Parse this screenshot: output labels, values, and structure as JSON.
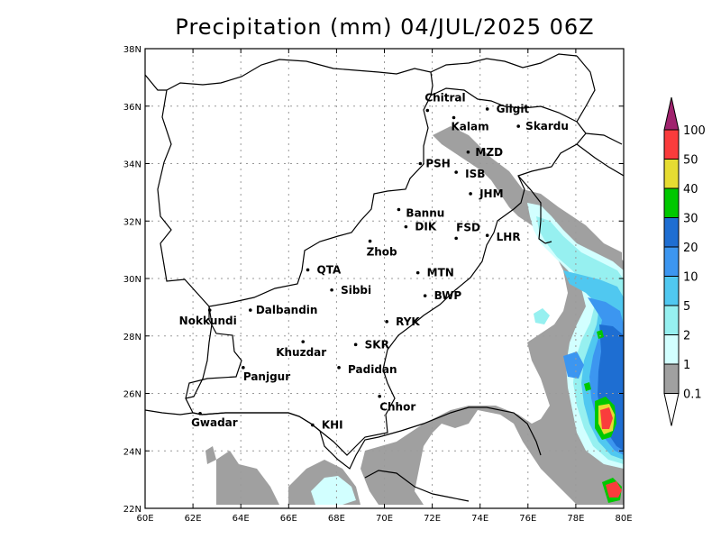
{
  "title": "Precipitation (mm) 04/JUL/2025 06Z",
  "axes": {
    "x_ticks": [
      "60E",
      "62E",
      "64E",
      "66E",
      "68E",
      "70E",
      "72E",
      "74E",
      "76E",
      "78E",
      "80E"
    ],
    "y_ticks": [
      "22N",
      "24N",
      "26N",
      "28N",
      "30N",
      "32N",
      "34N",
      "36N",
      "38N"
    ],
    "lon_range": [
      60,
      80
    ],
    "lat_range": [
      22,
      38
    ],
    "grid": true
  },
  "stations": [
    {
      "name": "Chitral",
      "lon": 71.8,
      "lat": 35.85
    },
    {
      "name": "Gilgit",
      "lon": 74.3,
      "lat": 35.9
    },
    {
      "name": "Kalam",
      "lon": 72.9,
      "lat": 35.6
    },
    {
      "name": "Skardu",
      "lon": 75.6,
      "lat": 35.3
    },
    {
      "name": "MZD",
      "lon": 73.5,
      "lat": 34.4
    },
    {
      "name": "PSH",
      "lon": 71.5,
      "lat": 34.0
    },
    {
      "name": "ISB",
      "lon": 73.0,
      "lat": 33.7
    },
    {
      "name": "JHM",
      "lon": 73.6,
      "lat": 32.95
    },
    {
      "name": "Bannu",
      "lon": 70.6,
      "lat": 32.4
    },
    {
      "name": "DIK",
      "lon": 70.9,
      "lat": 31.8
    },
    {
      "name": "FSD",
      "lon": 73.0,
      "lat": 31.4
    },
    {
      "name": "LHR",
      "lon": 74.3,
      "lat": 31.5
    },
    {
      "name": "Zhob",
      "lon": 69.4,
      "lat": 31.3
    },
    {
      "name": "QTA",
      "lon": 66.8,
      "lat": 30.3
    },
    {
      "name": "MTN",
      "lon": 71.4,
      "lat": 30.2
    },
    {
      "name": "Sibbi",
      "lon": 67.8,
      "lat": 29.6
    },
    {
      "name": "BWP",
      "lon": 71.7,
      "lat": 29.4
    },
    {
      "name": "Nokkundi",
      "lon": 62.7,
      "lat": 28.9
    },
    {
      "name": "Dalbandin",
      "lon": 64.4,
      "lat": 28.9
    },
    {
      "name": "RYK",
      "lon": 70.1,
      "lat": 28.5
    },
    {
      "name": "Khuzdar",
      "lon": 66.6,
      "lat": 27.8
    },
    {
      "name": "SKR",
      "lon": 68.8,
      "lat": 27.7
    },
    {
      "name": "Panjgur",
      "lon": 64.1,
      "lat": 26.9
    },
    {
      "name": "Padidan",
      "lon": 68.1,
      "lat": 26.9
    },
    {
      "name": "Chhor",
      "lon": 69.8,
      "lat": 25.9
    },
    {
      "name": "Gwadar",
      "lon": 62.3,
      "lat": 25.3
    },
    {
      "name": "KHI",
      "lon": 67.0,
      "lat": 24.9
    }
  ],
  "colorbar": {
    "labels": [
      "0.1",
      "1",
      "2",
      "5",
      "10",
      "20",
      "30",
      "40",
      "50",
      "100"
    ],
    "colors": [
      "#a0a0a0",
      "#d2ffff",
      "#96f0f0",
      "#50c8f0",
      "#3c96f0",
      "#1e6ed2",
      "#00c800",
      "#e6dc32",
      "#fa3c3c",
      "#a0236e"
    ]
  }
}
